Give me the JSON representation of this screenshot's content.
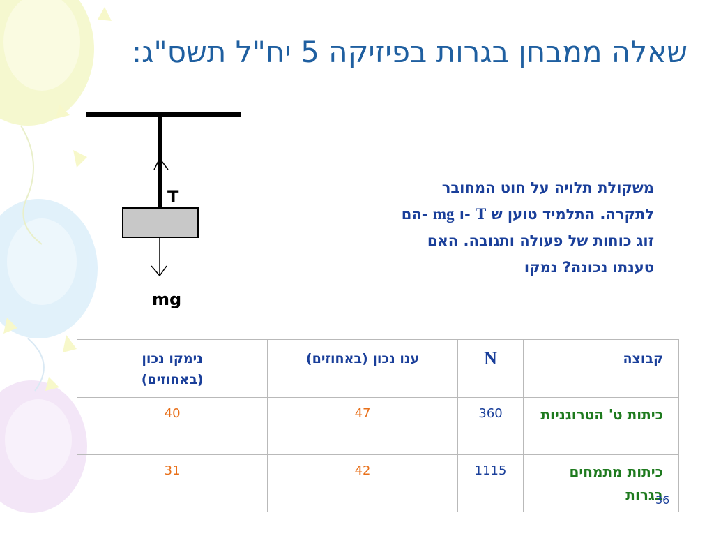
{
  "slide": {
    "title": "שאלה ממבחן בגרות בפיזיקה 5 יח\"ל תשס\"ג:",
    "page_number": "36"
  },
  "diagram": {
    "tension_label": "T",
    "weight_label": "mg"
  },
  "question": {
    "line1": "משקולת תלויה על חוט המחובר",
    "line2_a": "לתקרה. התלמיד טוען ש ",
    "line2_T": "T",
    "line2_b": " -ו ",
    "line2_mg": "mg",
    "line2_c": " -הם",
    "line3": "זוג כוחות של פעולה ותגובה. האם",
    "line4": "טענתו נכונה? נמקו"
  },
  "table": {
    "headers": [
      "קבוצה",
      "N",
      "ענו נכון (באחוזים)",
      "נימקו נכון (באחוזים)"
    ],
    "rows": [
      {
        "group": "כיתות ט' הטרוגניות",
        "n": "360",
        "answered_correct": "47",
        "reasoned_correct": "40"
      },
      {
        "group": "כיתות מתמחים בגרות",
        "n": "1115",
        "answered_correct": "42",
        "reasoned_correct": "31"
      }
    ]
  },
  "colors": {
    "title": "#1f5fa0",
    "question_text": "#1a3f9a",
    "group_text": "#1e7a1e",
    "percent_text": "#e8701a",
    "block_fill": "#c8c8c8"
  }
}
